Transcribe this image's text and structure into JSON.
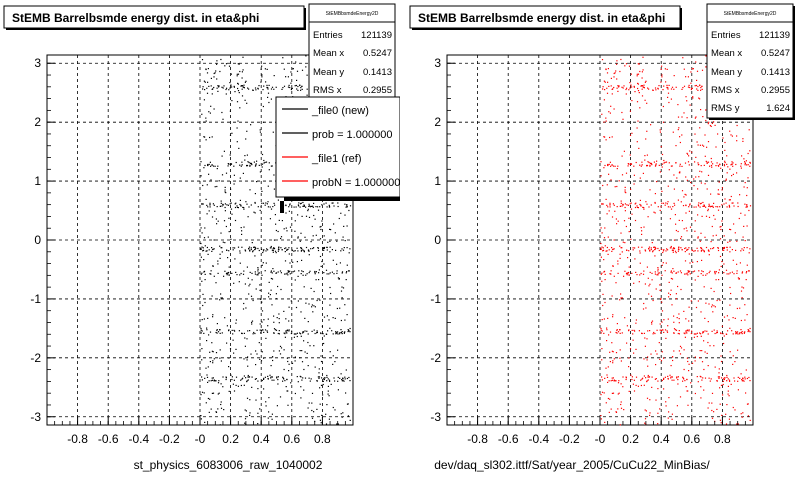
{
  "panels": [
    {
      "title": "StEMB Barrelbsmde energy dist. in eta&phi",
      "stats": {
        "header": "StEMBbsmdeEnergy2D",
        "rows": [
          {
            "label": "Entries",
            "value": "121139"
          },
          {
            "label": "Mean x",
            "value": "0.5247"
          },
          {
            "label": "Mean y",
            "value": "0.1413"
          },
          {
            "label": "RMS x",
            "value": "0.2955"
          }
        ]
      },
      "legend": [
        {
          "label": "_file0 (new)",
          "color": "#000000"
        },
        {
          "label": "prob = 1.000000",
          "color": "#000000"
        },
        {
          "label": "_file1 (ref)",
          "color": "#ff0000"
        },
        {
          "label": "probN = 1.000000",
          "color": "#ff0000"
        }
      ],
      "footer": "st_physics_6083006_raw_1040002",
      "marker_color": "#000000"
    },
    {
      "title": "StEMB Barrelbsmde energy dist. in eta&phi",
      "stats": {
        "header": "StEMBbsmdeEnergy2D",
        "rows": [
          {
            "label": "Entries",
            "value": "121139"
          },
          {
            "label": "Mean x",
            "value": "0.5247"
          },
          {
            "label": "Mean y",
            "value": "0.1413"
          },
          {
            "label": "RMS x",
            "value": "0.2955"
          },
          {
            "label": "RMS y",
            "value": "1.624"
          }
        ]
      },
      "footer": "dev/daq_sl302.ittf/Sat/year_2005/CuCu22_MinBias/",
      "marker_color": "#ff0000"
    }
  ],
  "chart_data": [
    {
      "type": "scatter",
      "title": "StEMB Barrelbsmde energy dist. in eta&phi",
      "xlim": [
        -1.0,
        1.0
      ],
      "ylim": [
        -3.14,
        3.14
      ],
      "x_ticks": [
        "-0.8",
        "-0.6",
        "-0.4",
        "-0.2",
        "-0",
        "0.2",
        "0.4",
        "0.6",
        "0.8"
      ],
      "x_tick_values": [
        -0.8,
        -0.6,
        -0.4,
        -0.2,
        0,
        0.2,
        0.4,
        0.6,
        0.8
      ],
      "y_ticks": [
        "-3",
        "-2",
        "-1",
        "0",
        "1",
        "2",
        "3"
      ],
      "y_tick_values": [
        -3,
        -2,
        -1,
        0,
        1,
        2,
        3
      ],
      "grid": true,
      "occupied_x_range": [
        0.0,
        0.98
      ],
      "dense_phi_bands": [
        -2.35,
        -1.55,
        -0.55,
        -0.15,
        0.6,
        1.3,
        2.6
      ],
      "series": [
        {
          "name": "_file0 (new)",
          "color": "#000000"
        }
      ]
    },
    {
      "type": "scatter",
      "title": "StEMB Barrelbsmde energy dist. in eta&phi",
      "xlim": [
        -1.0,
        1.0
      ],
      "ylim": [
        -3.14,
        3.14
      ],
      "x_ticks": [
        "-0.8",
        "-0.6",
        "-0.4",
        "-0.2",
        "-0",
        "0.2",
        "0.4",
        "0.6",
        "0.8"
      ],
      "x_tick_values": [
        -0.8,
        -0.6,
        -0.4,
        -0.2,
        0,
        0.2,
        0.4,
        0.6,
        0.8
      ],
      "y_ticks": [
        "-3",
        "-2",
        "-1",
        "0",
        "1",
        "2",
        "3"
      ],
      "y_tick_values": [
        -3,
        -2,
        -1,
        0,
        1,
        2,
        3
      ],
      "grid": true,
      "occupied_x_range": [
        0.0,
        0.98
      ],
      "dense_phi_bands": [
        -2.35,
        -1.55,
        -0.55,
        -0.15,
        0.6,
        1.3,
        2.6
      ],
      "series": [
        {
          "name": "_file1 (ref)",
          "color": "#ff0000"
        }
      ]
    }
  ]
}
